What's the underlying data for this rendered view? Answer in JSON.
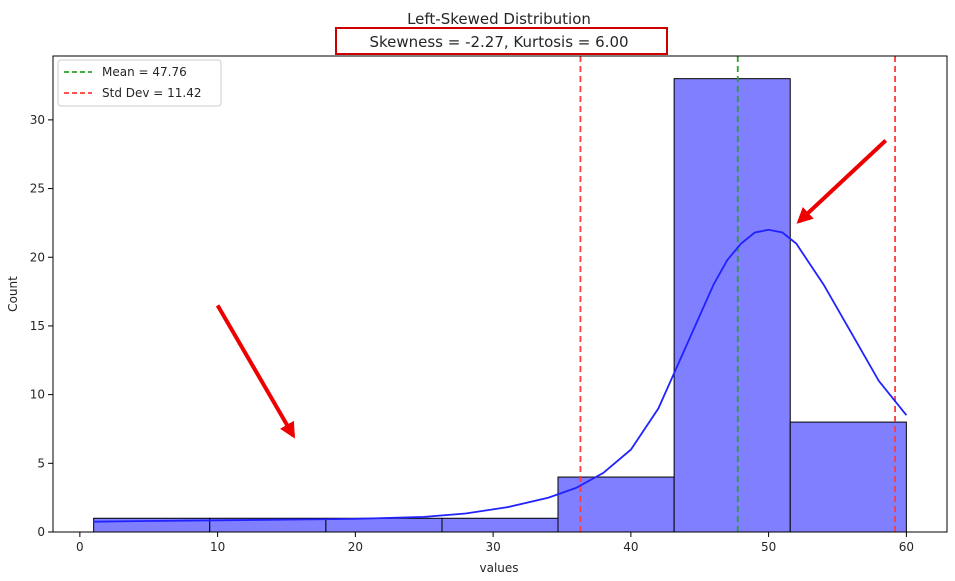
{
  "chart_data": {
    "type": "bar",
    "title": "Left-Skewed Distribution",
    "subtitle": "Skewness = -2.27, Kurtosis = 6.00",
    "xlabel": "values",
    "ylabel": "Count",
    "xlim": [
      -1.95,
      62.95
    ],
    "ylim": [
      0,
      34.65
    ],
    "xticks": [
      0,
      10,
      20,
      30,
      40,
      50,
      60
    ],
    "yticks": [
      0,
      5,
      10,
      15,
      20,
      25,
      30
    ],
    "grid": false,
    "legend_position": "top-left",
    "bins": [
      {
        "x0": 1.0,
        "x1": 9.43,
        "count": 1
      },
      {
        "x0": 9.43,
        "x1": 17.86,
        "count": 1
      },
      {
        "x0": 17.86,
        "x1": 26.29,
        "count": 1
      },
      {
        "x0": 26.29,
        "x1": 34.71,
        "count": 1
      },
      {
        "x0": 34.71,
        "x1": 43.14,
        "count": 4
      },
      {
        "x0": 43.14,
        "x1": 51.57,
        "count": 33
      },
      {
        "x0": 51.57,
        "x1": 60.0,
        "count": 8
      }
    ],
    "kde": {
      "x": [
        1,
        5,
        10,
        15,
        20,
        25,
        28,
        31,
        34,
        36,
        38,
        40,
        42,
        44,
        46,
        47,
        48,
        49,
        50,
        51,
        52,
        54,
        56,
        58,
        60
      ],
      "y": [
        0.75,
        0.8,
        0.85,
        0.9,
        0.95,
        1.1,
        1.35,
        1.8,
        2.5,
        3.2,
        4.3,
        6.0,
        9.0,
        13.5,
        18.0,
        19.8,
        21.0,
        21.8,
        22.0,
        21.8,
        21.0,
        18.0,
        14.5,
        11.0,
        8.5
      ]
    },
    "vlines": [
      {
        "name": "Mean = 47.76",
        "x": 47.76,
        "color": "#2ca02c",
        "style": "dashed"
      },
      {
        "name": "Std Dev = 11.42",
        "x": 36.34,
        "color": "#ff3b3b",
        "style": "dashed"
      },
      {
        "name": "",
        "x": 59.18,
        "color": "#ff3b3b",
        "style": "dashed"
      }
    ],
    "colors": {
      "bar_fill": "#7f7fff",
      "bar_edge": "#000000",
      "kde": "#2222ff",
      "highlight_box": "#cc0000",
      "arrow": "#ee0000"
    },
    "annotations": [
      {
        "type": "arrow",
        "from": [
          10,
          16.5
        ],
        "to": [
          15.5,
          7
        ],
        "color": "#ee0000"
      },
      {
        "type": "arrow",
        "from": [
          58.5,
          28.5
        ],
        "to": [
          52.2,
          22.6
        ],
        "color": "#ee0000"
      }
    ]
  }
}
